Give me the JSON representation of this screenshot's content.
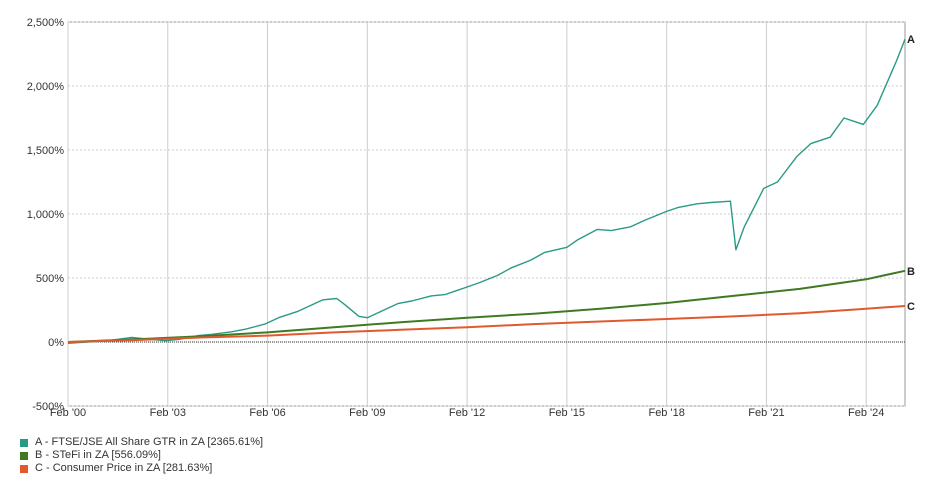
{
  "chart_data": {
    "type": "line",
    "title": "",
    "xlabel": "",
    "ylabel": "",
    "x_tick_labels": [
      "Feb '00",
      "Feb '03",
      "Feb '06",
      "Feb '09",
      "Feb '12",
      "Feb '15",
      "Feb '18",
      "Feb '21",
      "Feb '24"
    ],
    "y_tick_labels": [
      "2,500%",
      "2,000%",
      "1,500%",
      "1,000%",
      "500%",
      "0%",
      "-500%"
    ],
    "y_ticks": [
      2500,
      2000,
      1500,
      1000,
      500,
      0,
      -500
    ],
    "ylim": [
      -500,
      2500
    ],
    "xlim": [
      "2000-02",
      "2025-04"
    ],
    "grid": true,
    "legend_position": "bottom-left",
    "series": [
      {
        "name": "A - FTSE/JSE All Share GTR in ZA [2365.61%]",
        "end_label": "A",
        "color": "#2a9a86",
        "x": [
          "2000-02",
          "2000-06",
          "2001-01",
          "2001-06",
          "2002-01",
          "2002-06",
          "2003-01",
          "2003-06",
          "2004-01",
          "2004-06",
          "2005-01",
          "2005-06",
          "2006-01",
          "2006-06",
          "2007-01",
          "2007-06",
          "2007-10",
          "2008-03",
          "2008-06",
          "2008-11",
          "2009-02",
          "2009-06",
          "2010-01",
          "2010-06",
          "2011-01",
          "2011-06",
          "2011-10",
          "2012-02",
          "2012-06",
          "2013-01",
          "2013-06",
          "2014-01",
          "2014-06",
          "2015-02",
          "2015-06",
          "2016-01",
          "2016-06",
          "2017-01",
          "2017-06",
          "2018-02",
          "2018-06",
          "2019-01",
          "2019-06",
          "2020-01",
          "2020-03",
          "2020-06",
          "2021-01",
          "2021-06",
          "2022-01",
          "2022-06",
          "2023-01",
          "2023-06",
          "2024-01",
          "2024-06",
          "2025-01",
          "2025-04"
        ],
        "values": [
          -10,
          -5,
          5,
          15,
          35,
          25,
          10,
          20,
          50,
          60,
          80,
          100,
          140,
          190,
          240,
          290,
          330,
          340,
          290,
          200,
          190,
          230,
          300,
          320,
          360,
          370,
          400,
          430,
          460,
          520,
          580,
          640,
          700,
          740,
          800,
          880,
          870,
          900,
          950,
          1020,
          1050,
          1080,
          1090,
          1100,
          720,
          900,
          1200,
          1250,
          1450,
          1550,
          1600,
          1750,
          1700,
          1850,
          2200,
          2365.61
        ]
      },
      {
        "name": "B - STeFi in ZA [556.09%]",
        "end_label": "B",
        "color": "#3f7a22",
        "x": [
          "2000-02",
          "2002-02",
          "2004-02",
          "2006-02",
          "2008-02",
          "2010-02",
          "2012-02",
          "2014-02",
          "2016-02",
          "2018-02",
          "2020-02",
          "2022-02",
          "2024-02",
          "2025-04"
        ],
        "values": [
          0,
          20,
          45,
          75,
          115,
          155,
          190,
          220,
          260,
          305,
          360,
          415,
          490,
          556.09
        ]
      },
      {
        "name": "C - Consumer Price in ZA [281.63%]",
        "end_label": "C",
        "color": "#e05a30",
        "x": [
          "2000-02",
          "2002-02",
          "2004-02",
          "2006-02",
          "2008-02",
          "2010-02",
          "2012-02",
          "2014-02",
          "2016-02",
          "2018-02",
          "2020-02",
          "2022-02",
          "2024-02",
          "2025-04"
        ],
        "values": [
          0,
          15,
          35,
          50,
          75,
          95,
          115,
          140,
          160,
          180,
          200,
          225,
          260,
          281.63
        ]
      }
    ]
  }
}
